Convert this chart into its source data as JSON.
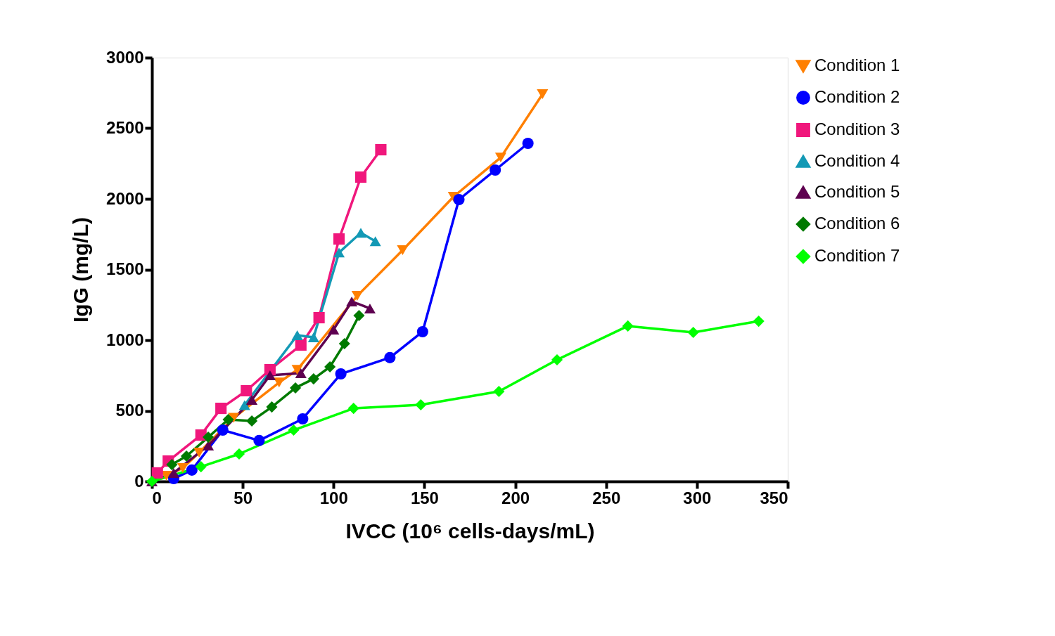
{
  "chart_data": {
    "type": "line",
    "xlabel": "IVCC (10⁶ cells-days/mL)",
    "ylabel": "IgG (mg/L)",
    "xlim": [
      0,
      350
    ],
    "xticks": [
      0,
      50,
      100,
      150,
      200,
      250,
      300,
      350
    ],
    "ylim": [
      0,
      3000
    ],
    "yticks": [
      0,
      500,
      1000,
      1500,
      2000,
      2500,
      3000
    ],
    "grid": false,
    "legend": "top right",
    "line_style": "solid",
    "series": [
      {
        "name": "Condition 1",
        "color": "#ff7f00",
        "marker": "triangle-down",
        "x": [
          8,
          17,
          26,
          45,
          70,
          80,
          113,
          138,
          166,
          192,
          215
        ],
        "values": [
          40,
          95,
          204,
          450,
          700,
          790,
          1313,
          1637,
          2015,
          2293,
          2741
        ]
      },
      {
        "name": "Condition 2",
        "color": "#0000ff",
        "marker": "circle",
        "x": [
          12,
          22,
          39,
          59,
          83,
          104,
          131,
          149,
          169,
          189,
          207
        ],
        "values": [
          20,
          80,
          363,
          289,
          443,
          761,
          876,
          1060,
          1995,
          2204,
          2393
        ]
      },
      {
        "name": "Condition 3",
        "color": "#f0177c",
        "marker": "square",
        "x": [
          3,
          9,
          27,
          38,
          52,
          65,
          82,
          92,
          103,
          115,
          126
        ],
        "values": [
          60,
          144,
          328,
          517,
          642,
          791,
          965,
          1159,
          1716,
          2154,
          2348
        ]
      },
      {
        "name": "Condition 4",
        "color": "#1399b5",
        "marker": "triangle-up",
        "x": [
          51,
          80,
          89,
          103,
          115,
          123
        ],
        "values": [
          540,
          1035,
          1020,
          1620,
          1760,
          1700
        ]
      },
      {
        "name": "Condition 5",
        "color": "#5e0050",
        "marker": "triangle-up",
        "x": [
          0,
          12,
          31,
          55,
          65,
          82,
          100,
          110,
          120
        ],
        "values": [
          0,
          60,
          254,
          577,
          751,
          766,
          1075,
          1274,
          1224
        ]
      },
      {
        "name": "Condition 6",
        "color": "#007a00",
        "marker": "diamond",
        "x": [
          11,
          19,
          31,
          42,
          55,
          66,
          79,
          89,
          98,
          106,
          114
        ],
        "values": [
          119,
          179,
          313,
          438,
          428,
          527,
          662,
          726,
          811,
          975,
          1174
        ]
      },
      {
        "name": "Condition 7",
        "color": "#00ff00",
        "marker": "diamond",
        "x": [
          0,
          27,
          48,
          78,
          111,
          148,
          191,
          223,
          262,
          298,
          334
        ],
        "values": [
          0,
          104,
          194,
          363,
          517,
          542,
          637,
          861,
          1100,
          1055,
          1134
        ]
      }
    ]
  }
}
